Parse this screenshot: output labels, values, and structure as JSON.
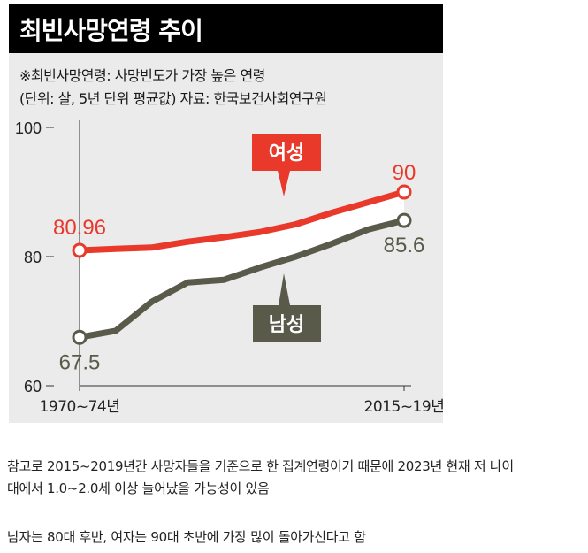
{
  "chart_data": {
    "type": "line",
    "title": "최빈사망연령 추이",
    "subtitle_lines": [
      "※최빈사망연령: 사망빈도가 가장 높은 연령",
      "(단위: 살, 5년 단위 평균값)  자료: 한국보건사회연구원"
    ],
    "x_tick_labels": [
      "1970~74년",
      "2015~19년"
    ],
    "y_ticks": [
      60,
      80,
      100
    ],
    "ylim": [
      60,
      100
    ],
    "x_index_range": [
      0,
      9
    ],
    "series": [
      {
        "name": "여성",
        "color": "#e8392a",
        "x": [
          0,
          1,
          2,
          3,
          4,
          5,
          6,
          7,
          8,
          9
        ],
        "values": [
          80.96,
          81.2,
          81.4,
          82.3,
          83.0,
          83.8,
          85.0,
          86.8,
          88.4,
          90.0
        ],
        "start_label": "80.96",
        "end_label": "90"
      },
      {
        "name": "남성",
        "color": "#5a5a4a",
        "x": [
          0,
          1,
          2,
          3,
          4,
          5,
          6,
          7,
          8,
          9
        ],
        "values": [
          67.5,
          68.5,
          73.0,
          76.0,
          76.4,
          78.3,
          80.0,
          82.0,
          84.2,
          85.6
        ],
        "start_label": "67.5",
        "end_label": "85.6"
      }
    ]
  },
  "captions": {
    "line1": "참고로 2015~2019년간 사망자들을 기준으로 한 집계연령이기 때문에 2023년 현재 저 나이",
    "line1b": "대에서 1.0~2.0세 이상 늘어났을 가능성이 있음",
    "line2": "남자는 80대 후반, 여자는 90대 초반에 가장 많이 돌아가신다고 함"
  }
}
